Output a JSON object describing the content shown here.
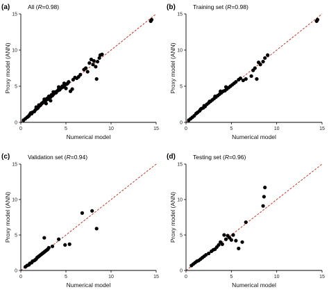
{
  "chart_data": [
    {
      "type": "scatter",
      "panel_label": "(a)",
      "title_prefix": "All (",
      "title_r_symbol": "R",
      "title_suffix": "=0.98)",
      "xlabel": "Numerical model",
      "ylabel": "Proxy model (ANN)",
      "xlim": [
        0,
        15
      ],
      "ylim": [
        0,
        15
      ],
      "xticks": [
        "0",
        "5",
        "10",
        "15"
      ],
      "yticks": [
        "0",
        "5",
        "10",
        "15"
      ],
      "reference_line": "y = x",
      "series": [
        {
          "x": [
            0.3,
            0.5,
            0.7,
            0.9,
            1.0,
            1.2,
            1.3,
            1.5,
            1.6,
            1.8,
            1.9,
            2.0,
            2.1,
            2.2,
            2.3,
            2.4,
            2.5,
            2.6,
            2.7,
            2.8,
            2.9,
            3.0,
            3.1,
            3.2,
            3.3,
            3.4,
            3.5,
            3.6,
            3.7,
            3.8,
            3.9,
            4.0,
            4.1,
            4.2,
            4.3,
            4.4,
            4.5,
            4.6,
            4.7,
            4.8,
            4.9,
            5.0,
            5.1,
            5.2,
            5.3,
            5.5,
            5.7,
            5.8,
            6.0,
            6.2,
            6.4,
            6.6,
            7.0,
            7.2,
            7.4,
            7.6,
            7.8,
            8.0,
            8.1,
            8.3,
            8.4,
            8.5,
            8.7,
            8.8,
            9.0,
            14.4,
            14.5,
            2.3,
            2.6,
            3.1,
            3.6,
            4.2,
            4.8,
            2.0,
            1.7,
            2.8,
            3.3,
            1.1,
            0.8
          ],
          "y": [
            0.3,
            0.5,
            0.7,
            0.9,
            1.1,
            1.2,
            1.4,
            1.5,
            1.7,
            1.9,
            2.0,
            2.2,
            2.3,
            2.4,
            2.6,
            2.7,
            2.8,
            3.0,
            2.9,
            3.1,
            3.3,
            3.2,
            3.4,
            3.6,
            3.5,
            3.8,
            3.7,
            3.9,
            4.0,
            4.2,
            4.1,
            4.3,
            4.4,
            4.6,
            4.5,
            4.7,
            4.8,
            5.0,
            4.9,
            5.1,
            5.2,
            4.7,
            5.3,
            5.4,
            5.6,
            4.3,
            4.6,
            5.9,
            6.2,
            6.1,
            6.3,
            6.6,
            7.3,
            7.5,
            7.0,
            8.2,
            8.7,
            8.0,
            8.5,
            7.7,
            6.0,
            8.4,
            8.9,
            9.3,
            9.4,
            14.0,
            14.2,
            2.6,
            3.2,
            3.6,
            4.2,
            4.9,
            5.4,
            2.4,
            2.1,
            2.6,
            3.0,
            1.3,
            0.8
          ]
        }
      ]
    },
    {
      "type": "scatter",
      "panel_label": "(b)",
      "title_prefix": "Training set (",
      "title_r_symbol": "R",
      "title_suffix": "=0.98)",
      "xlabel": "Numerical model",
      "ylabel": "Proxy model (ANN)",
      "xlim": [
        0,
        15
      ],
      "ylim": [
        0,
        15
      ],
      "xticks": [
        "0",
        "5",
        "10",
        "15"
      ],
      "yticks": [
        "0",
        "5",
        "10",
        "15"
      ],
      "reference_line": "y = x",
      "series": [
        {
          "x": [
            0.3,
            0.5,
            0.7,
            0.9,
            1.1,
            1.3,
            1.5,
            1.7,
            1.9,
            2.1,
            2.3,
            2.5,
            2.7,
            2.9,
            3.1,
            3.3,
            3.5,
            3.7,
            3.9,
            4.1,
            4.3,
            4.5,
            4.7,
            4.9,
            5.1,
            5.3,
            5.5,
            5.8,
            6.0,
            6.3,
            6.6,
            7.2,
            7.4,
            7.6,
            7.8,
            8.0,
            8.2,
            8.5,
            8.7,
            9.0,
            14.4,
            14.5,
            2.0,
            2.6,
            3.2,
            3.8,
            4.4,
            1.6,
            1.2
          ],
          "y": [
            0.3,
            0.5,
            0.7,
            0.9,
            1.2,
            1.4,
            1.6,
            1.9,
            2.0,
            2.2,
            2.5,
            2.7,
            2.9,
            3.1,
            3.3,
            3.5,
            3.7,
            3.9,
            4.1,
            4.3,
            4.4,
            4.6,
            4.8,
            5.0,
            5.2,
            5.4,
            5.6,
            5.9,
            6.1,
            5.8,
            6.0,
            6.4,
            7.2,
            7.5,
            6.0,
            8.3,
            8.0,
            8.4,
            8.9,
            9.3,
            14.0,
            14.2,
            2.3,
            2.9,
            3.6,
            4.3,
            4.9,
            1.8,
            1.3
          ]
        }
      ]
    },
    {
      "type": "scatter",
      "panel_label": "(c)",
      "title_prefix": "Validation set (",
      "title_r_symbol": "R",
      "title_suffix": "=0.94)",
      "xlabel": "Numerical model",
      "ylabel": "Proxy model (ANN)",
      "xlim": [
        0,
        15
      ],
      "ylim": [
        0,
        15
      ],
      "xticks": [
        "0",
        "5",
        "10",
        "15"
      ],
      "yticks": [
        "0",
        "5",
        "10",
        "15"
      ],
      "reference_line": "y = x",
      "series": [
        {
          "x": [
            0.5,
            0.7,
            0.9,
            1.0,
            1.2,
            1.3,
            1.5,
            1.6,
            1.7,
            1.8,
            1.9,
            2.0,
            2.1,
            2.2,
            2.3,
            2.4,
            2.5,
            2.6,
            2.7,
            2.8,
            2.9,
            3.0,
            3.1,
            2.6,
            3.5,
            4.2,
            4.9,
            5.4,
            6.8,
            7.9,
            8.4
          ],
          "y": [
            0.5,
            0.7,
            0.8,
            1.0,
            1.1,
            1.3,
            1.4,
            1.5,
            1.6,
            1.8,
            1.9,
            2.0,
            2.1,
            2.2,
            2.3,
            2.4,
            2.5,
            2.6,
            2.7,
            2.8,
            2.9,
            3.0,
            3.2,
            4.6,
            3.4,
            4.4,
            3.6,
            3.7,
            8.1,
            8.4,
            5.9
          ]
        }
      ]
    },
    {
      "type": "scatter",
      "panel_label": "(d)",
      "title_prefix": "Testing set (",
      "title_r_symbol": "R",
      "title_suffix": "=0.96)",
      "xlabel": "Numerical model",
      "ylabel": "Proxy model (ANN)",
      "xlim": [
        0,
        15
      ],
      "ylim": [
        0,
        15
      ],
      "xticks": [
        "0",
        "5",
        "10",
        "15"
      ],
      "yticks": [
        "0",
        "5",
        "10",
        "15"
      ],
      "reference_line": "y = x",
      "series": [
        {
          "x": [
            0.6,
            0.8,
            1.0,
            1.2,
            1.4,
            1.6,
            1.8,
            2.0,
            2.2,
            2.5,
            2.8,
            3.0,
            3.2,
            3.4,
            3.6,
            3.8,
            4.0,
            4.2,
            4.4,
            4.6,
            4.8,
            5.0,
            5.2,
            5.5,
            5.8,
            6.2,
            6.6,
            8.5,
            8.6,
            8.7
          ],
          "y": [
            0.7,
            0.9,
            1.1,
            1.3,
            1.4,
            1.6,
            1.8,
            2.0,
            2.2,
            2.4,
            2.7,
            2.9,
            3.0,
            3.3,
            3.6,
            4.0,
            3.7,
            5.0,
            4.4,
            4.9,
            4.6,
            4.3,
            5.0,
            4.2,
            3.1,
            4.0,
            6.8,
            9.1,
            10.4,
            11.7
          ]
        }
      ]
    }
  ]
}
